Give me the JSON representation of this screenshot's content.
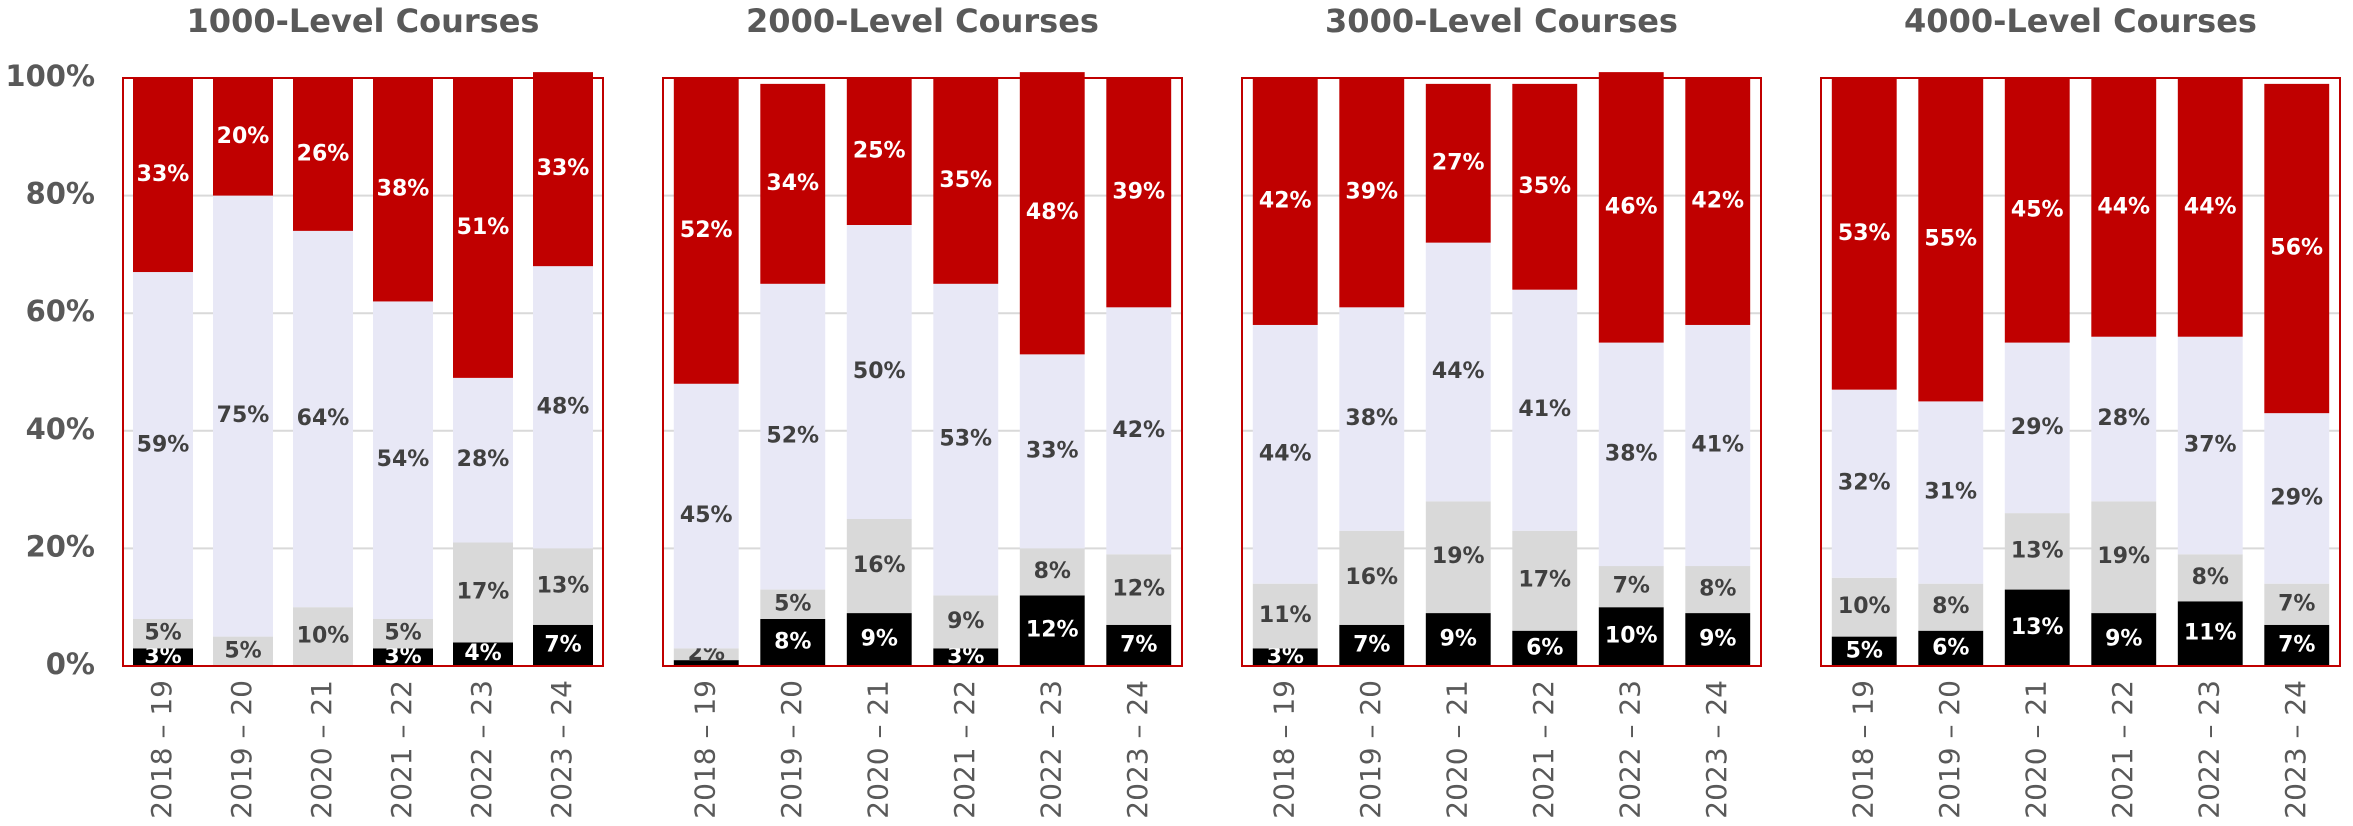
{
  "chart_data": [
    {
      "type": "bar",
      "stacked": true,
      "title": "1000-Level Courses",
      "categories": [
        "2018 – 19",
        "2019 – 20",
        "2020 – 21",
        "2021 – 22",
        "2022 – 23",
        "2023 – 24"
      ],
      "series": [
        {
          "color": "#000000",
          "label_color": "#ffffff",
          "values": [
            3,
            null,
            null,
            3,
            4,
            7
          ],
          "value_labels": [
            "3%",
            null,
            null,
            "3%",
            "4%",
            "7%"
          ]
        },
        {
          "color": "#d9d9d9",
          "label_color": "#404040",
          "values": [
            5,
            5,
            10,
            5,
            17,
            13
          ],
          "value_labels": [
            "5%",
            "5%",
            "10%",
            "5%",
            "17%",
            "13%"
          ]
        },
        {
          "color": "#e8e8f6",
          "label_color": "#404040",
          "values": [
            59,
            75,
            64,
            54,
            28,
            48
          ],
          "value_labels": [
            "59%",
            "75%",
            "64%",
            "54%",
            "28%",
            "48%"
          ]
        },
        {
          "color": "#c00000",
          "label_color": "#ffffff",
          "values": [
            33,
            20,
            26,
            38,
            51,
            33
          ],
          "value_labels": [
            "33%",
            "20%",
            "26%",
            "38%",
            "51%",
            "33%"
          ]
        }
      ],
      "ylim": [
        0,
        100
      ],
      "yticks": [
        {
          "value": 0,
          "label": "0%"
        },
        {
          "value": 20,
          "label": "20%"
        },
        {
          "value": 40,
          "label": "40%"
        },
        {
          "value": 60,
          "label": "60%"
        },
        {
          "value": 80,
          "label": "80%"
        },
        {
          "value": 100,
          "label": "100%"
        }
      ],
      "grid": true
    },
    {
      "type": "bar",
      "stacked": true,
      "title": "2000-Level Courses",
      "categories": [
        "2018 – 19",
        "2019 – 20",
        "2020 – 21",
        "2021 – 22",
        "2022 – 23",
        "2023 – 24"
      ],
      "series": [
        {
          "color": "#000000",
          "label_color": "#ffffff",
          "values": [
            1,
            8,
            9,
            3,
            12,
            7
          ],
          "value_labels": [
            null,
            "8%",
            "9%",
            "3%",
            "12%",
            "7%"
          ]
        },
        {
          "color": "#d9d9d9",
          "label_color": "#404040",
          "values": [
            2,
            5,
            16,
            9,
            8,
            12
          ],
          "value_labels": [
            "2%",
            "5%",
            "16%",
            "9%",
            "8%",
            "12%"
          ]
        },
        {
          "color": "#e8e8f6",
          "label_color": "#404040",
          "values": [
            45,
            52,
            50,
            53,
            33,
            42
          ],
          "value_labels": [
            "45%",
            "52%",
            "50%",
            "53%",
            "33%",
            "42%"
          ]
        },
        {
          "color": "#c00000",
          "label_color": "#ffffff",
          "values": [
            52,
            34,
            25,
            35,
            48,
            39
          ],
          "value_labels": [
            "52%",
            "34%",
            "25%",
            "35%",
            "48%",
            "39%"
          ]
        }
      ],
      "ylim": [
        0,
        100
      ],
      "yticks": [
        0,
        20,
        40,
        60,
        80,
        100
      ],
      "grid": true
    },
    {
      "type": "bar",
      "stacked": true,
      "title": "3000-Level Courses",
      "categories": [
        "2018 – 19",
        "2019 – 20",
        "2020 – 21",
        "2021 – 22",
        "2022 – 23",
        "2023 – 24"
      ],
      "series": [
        {
          "color": "#000000",
          "label_color": "#ffffff",
          "values": [
            3,
            7,
            9,
            6,
            10,
            9
          ],
          "value_labels": [
            "3%",
            "7%",
            "9%",
            "6%",
            "10%",
            "9%"
          ]
        },
        {
          "color": "#d9d9d9",
          "label_color": "#404040",
          "values": [
            11,
            16,
            19,
            17,
            7,
            8
          ],
          "value_labels": [
            "11%",
            "16%",
            "19%",
            "17%",
            "7%",
            "8%"
          ]
        },
        {
          "color": "#e8e8f6",
          "label_color": "#404040",
          "values": [
            44,
            38,
            44,
            41,
            38,
            41
          ],
          "value_labels": [
            "44%",
            "38%",
            "44%",
            "41%",
            "38%",
            "41%"
          ]
        },
        {
          "color": "#c00000",
          "label_color": "#ffffff",
          "values": [
            42,
            39,
            27,
            35,
            46,
            42
          ],
          "value_labels": [
            "42%",
            "39%",
            "27%",
            "35%",
            "46%",
            "42%"
          ]
        }
      ],
      "ylim": [
        0,
        100
      ],
      "yticks": [
        0,
        20,
        40,
        60,
        80,
        100
      ],
      "grid": true
    },
    {
      "type": "bar",
      "stacked": true,
      "title": "4000-Level Courses",
      "categories": [
        "2018 – 19",
        "2019 – 20",
        "2020 – 21",
        "2021 – 22",
        "2022 – 23",
        "2023 – 24"
      ],
      "series": [
        {
          "color": "#000000",
          "label_color": "#ffffff",
          "values": [
            5,
            6,
            13,
            9,
            11,
            7
          ],
          "value_labels": [
            "5%",
            "6%",
            "13%",
            "9%",
            "11%",
            "7%"
          ]
        },
        {
          "color": "#d9d9d9",
          "label_color": "#404040",
          "values": [
            10,
            8,
            13,
            19,
            8,
            7
          ],
          "value_labels": [
            "10%",
            "8%",
            "13%",
            "19%",
            "8%",
            "7%"
          ]
        },
        {
          "color": "#e8e8f6",
          "label_color": "#404040",
          "values": [
            32,
            31,
            29,
            28,
            37,
            29
          ],
          "value_labels": [
            "32%",
            "31%",
            "29%",
            "28%",
            "37%",
            "29%"
          ]
        },
        {
          "color": "#c00000",
          "label_color": "#ffffff",
          "values": [
            53,
            55,
            45,
            44,
            44,
            56
          ],
          "value_labels": [
            "53%",
            "55%",
            "45%",
            "44%",
            "44%",
            "56%"
          ]
        }
      ],
      "ylim": [
        0,
        100
      ],
      "yticks": [
        0,
        20,
        40,
        60,
        80,
        100
      ],
      "grid": true
    }
  ]
}
